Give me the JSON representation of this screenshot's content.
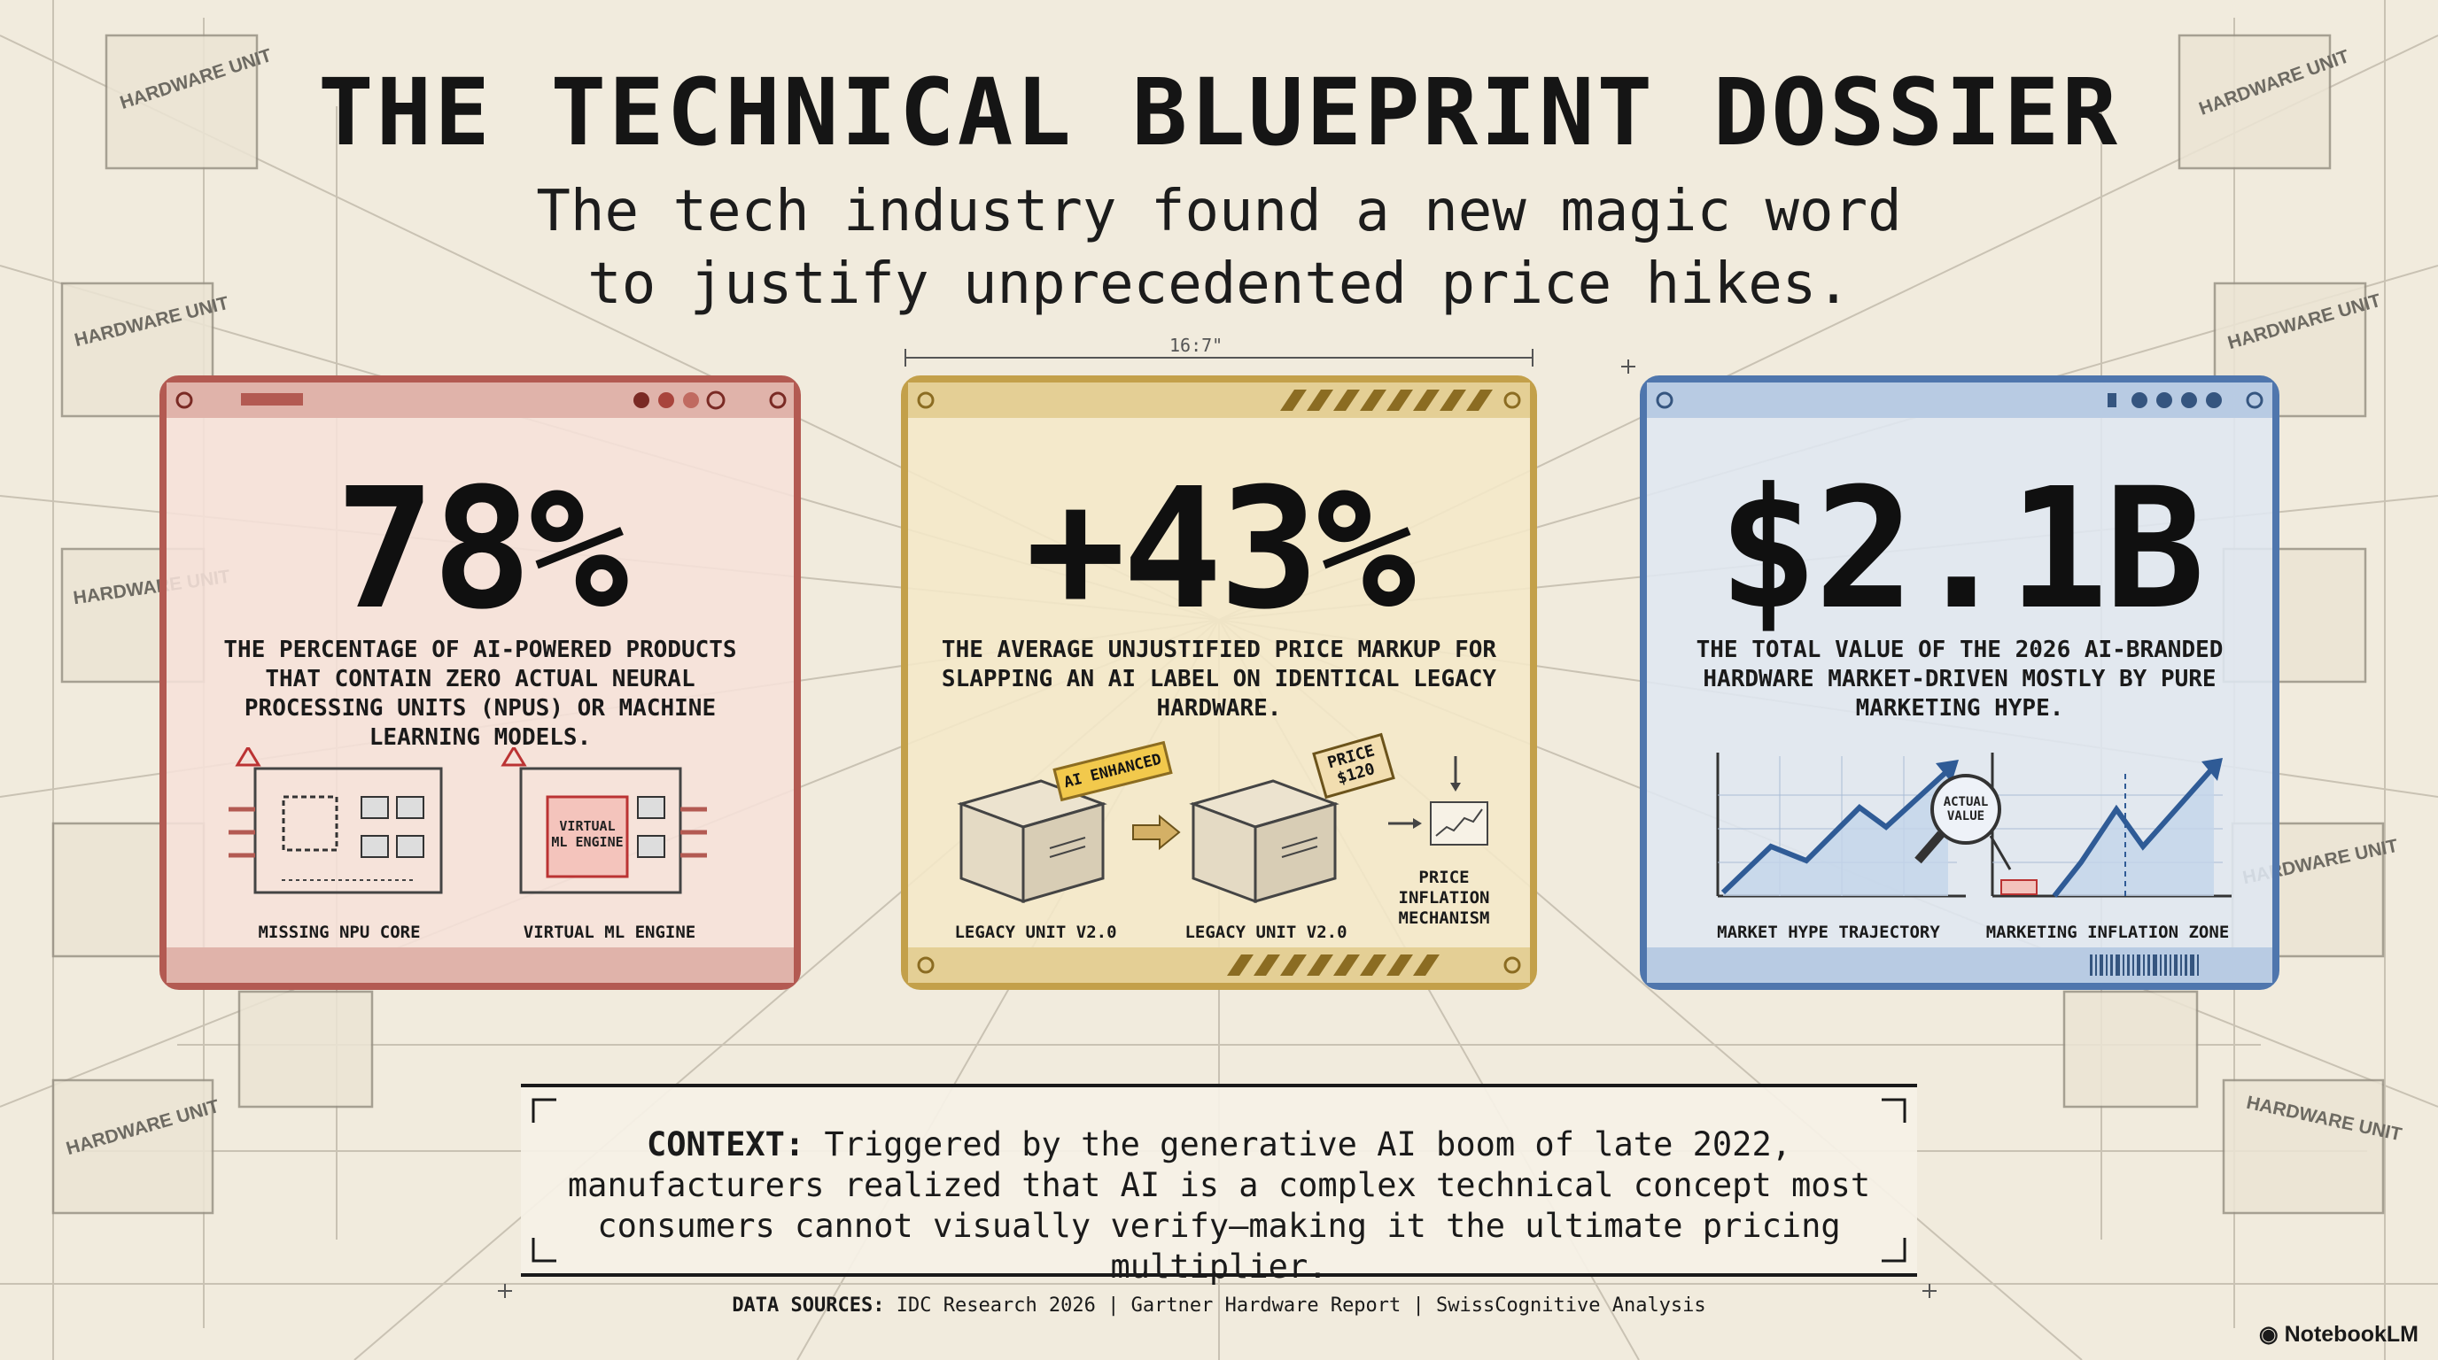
{
  "header": {
    "title": "THE TECHNICAL BLUEPRINT DOSSIER",
    "subtitle_line1": "The tech industry found a new magic word",
    "subtitle_line2": "to justify unprecedented price hikes."
  },
  "dimension_label": "16:7\"",
  "background_labels": [
    "HARDWARE UNIT",
    "HARDWARE UNIT",
    "HARDWARE UNIT",
    "HARDWARE UNIT",
    "HARDWARE UNIT",
    "HARDWARE UNIT",
    "HARDWARE UNIT",
    "HARDWARE UNIT"
  ],
  "cards": [
    {
      "stat": "78%",
      "description": "The percentage of AI-powered products that contain zero actual neural processing units (NPUs) or machine learning models.",
      "illustration_inner_label": "VIRTUAL ML ENGINE",
      "captions": [
        "MISSING NPU CORE",
        "VIRTUAL ML ENGINE"
      ],
      "accent_color": "#b35a52"
    },
    {
      "stat": "+43%",
      "description": "The average unjustified price markup for slapping an AI label on identical legacy hardware.",
      "tag_ai": "AI ENHANCED",
      "tag_price": "PRICE $120",
      "captions": [
        "LEGACY UNIT V2.0",
        "LEGACY UNIT V2.0",
        "PRICE INFLATION MECHANISM"
      ],
      "accent_color": "#c3a04a"
    },
    {
      "stat": "$2.1B",
      "description": "The total value of the 2026 AI-branded hardware market-driven mostly by pure marketing hype.",
      "magnifier_label": "ACTUAL VALUE",
      "captions": [
        "MARKET HYPE TRAJECTORY",
        "MARKETING INFLATION ZONE"
      ],
      "accent_color": "#4f76ad"
    }
  ],
  "context": {
    "label": "CONTEXT:",
    "text": "Triggered by the generative AI boom of late 2022, manufacturers realized that AI is a complex technical concept most consumers cannot visually verify—making it the ultimate pricing multiplier."
  },
  "sources": {
    "label": "DATA SOURCES:",
    "text": "IDC Research 2026 | Gartner Hardware Report | SwissCognitive Analysis"
  },
  "brand": "NotebookLM"
}
